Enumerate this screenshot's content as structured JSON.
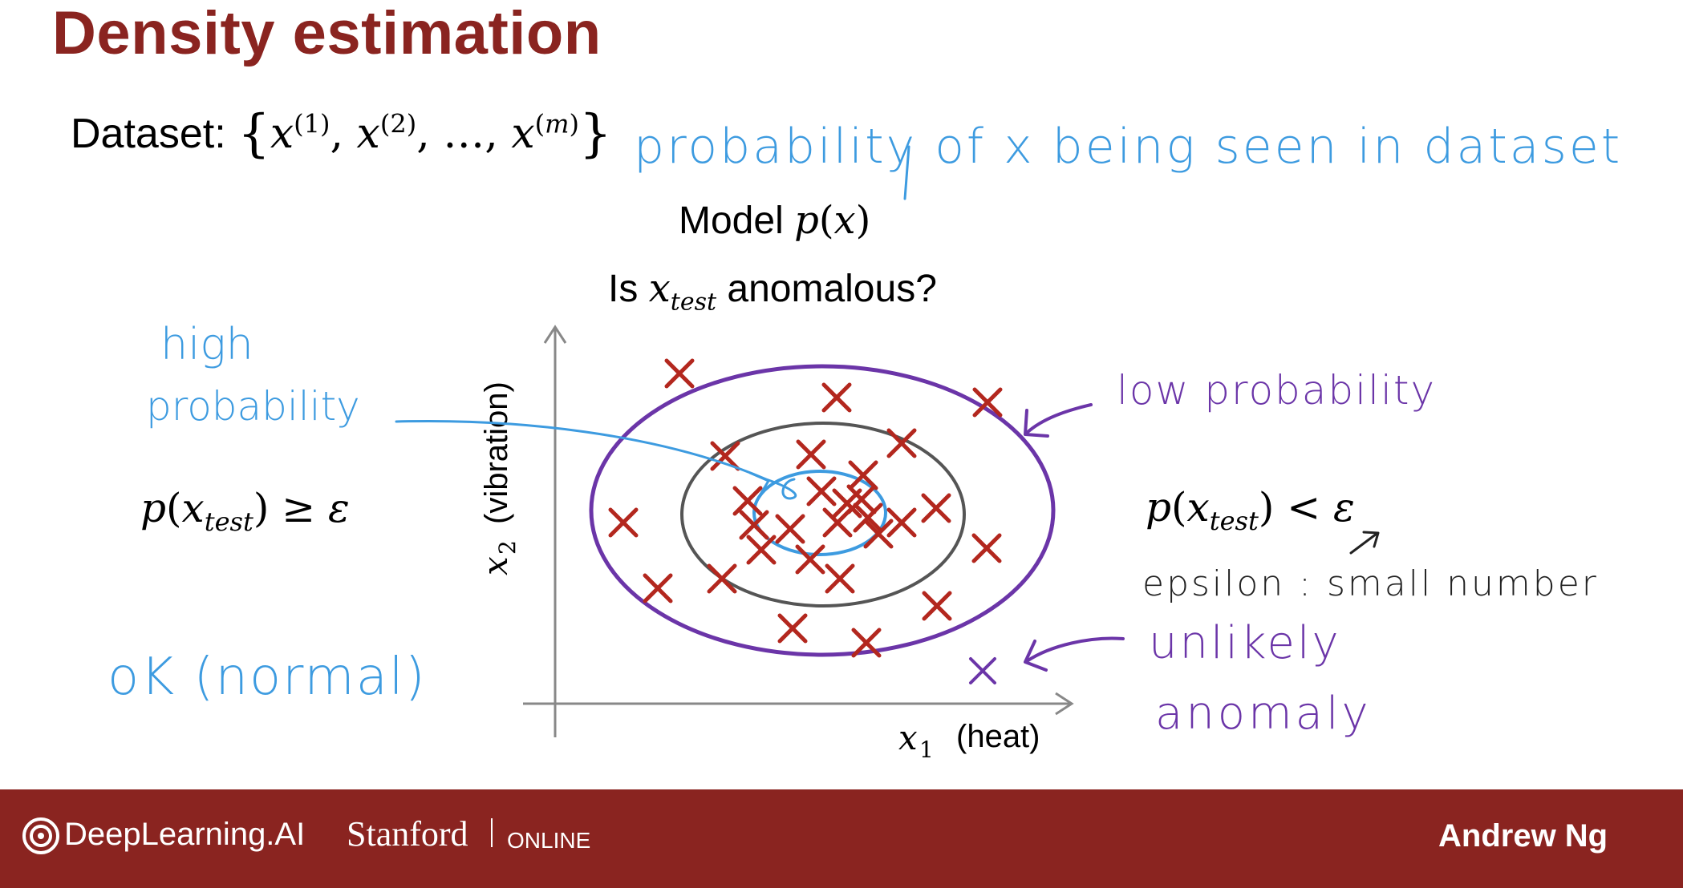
{
  "slide": {
    "title": "Density estimation",
    "dataset_label": "Dataset:",
    "model_label": "Model",
    "question_prefix": "Is",
    "question_suffix": "anomalous?",
    "x1_label": "(heat)",
    "x2_label": "(vibration)"
  },
  "annotations": {
    "prob_seen": "probability of x being seen in dataset",
    "high_line1": "high",
    "high_line2": "probability",
    "low_prob": "low probability",
    "ok_normal": "oK (normal)",
    "epsilon_note": "epsilon : small number",
    "unlikely": "unlikely",
    "anomaly": "anomaly"
  },
  "footer": {
    "brand": "DeepLearning.AI",
    "stanford": "Stanford",
    "online": "ONLINE",
    "author": "Andrew Ng"
  },
  "colors": {
    "title": "#8a2420",
    "footer_bg": "#8a2420",
    "marker": "#b3271e",
    "purple": "#6b35a8",
    "blue": "#3d9be0",
    "gray_ring": "#555555"
  }
}
